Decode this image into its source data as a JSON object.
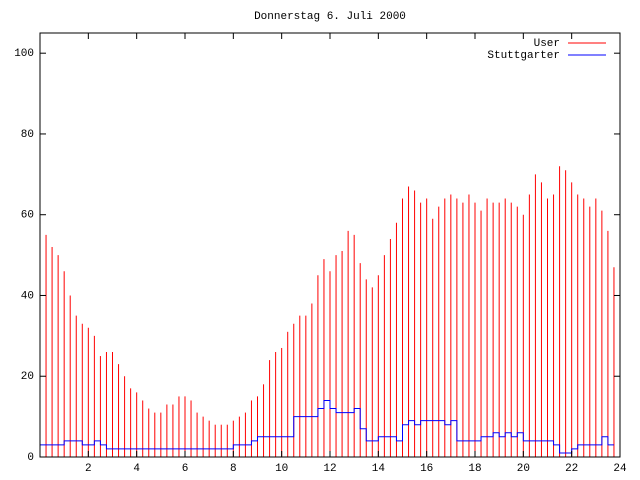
{
  "chart_data": {
    "type": "line",
    "title": "Donnerstag 6. Juli 2000",
    "x": [
      0,
      0.25,
      0.5,
      0.75,
      1,
      1.25,
      1.5,
      1.75,
      2,
      2.25,
      2.5,
      2.75,
      3,
      3.25,
      3.5,
      3.75,
      4,
      4.25,
      4.5,
      4.75,
      5,
      5.25,
      5.5,
      5.75,
      6,
      6.25,
      6.5,
      6.75,
      7,
      7.25,
      7.5,
      7.75,
      8,
      8.25,
      8.5,
      8.75,
      9,
      9.25,
      9.5,
      9.75,
      10,
      10.25,
      10.5,
      10.75,
      11,
      11.25,
      11.5,
      11.75,
      12,
      12.25,
      12.5,
      12.75,
      13,
      13.25,
      13.5,
      13.75,
      14,
      14.25,
      14.5,
      14.75,
      15,
      15.25,
      15.5,
      15.75,
      16,
      16.25,
      16.5,
      16.75,
      17,
      17.25,
      17.5,
      17.75,
      18,
      18.25,
      18.5,
      18.75,
      19,
      19.25,
      19.5,
      19.75,
      20,
      20.25,
      20.5,
      20.75,
      21,
      21.25,
      21.5,
      21.75,
      22,
      22.25,
      22.5,
      22.75,
      23,
      23.25,
      23.5,
      23.75
    ],
    "series": [
      {
        "name": "User",
        "color": "#ff0000",
        "style": "impulses",
        "values": [
          56,
          55,
          52,
          50,
          46,
          40,
          35,
          33,
          32,
          30,
          25,
          26,
          26,
          23,
          20,
          17,
          16,
          14,
          12,
          11,
          11,
          13,
          13,
          15,
          15,
          14,
          11,
          10,
          9,
          8,
          8,
          8,
          9,
          10,
          11,
          14,
          15,
          18,
          24,
          26,
          27,
          31,
          33,
          35,
          35,
          38,
          45,
          49,
          46,
          50,
          51,
          56,
          55,
          48,
          44,
          42,
          45,
          50,
          54,
          58,
          64,
          67,
          66,
          63,
          64,
          59,
          62,
          64,
          65,
          64,
          63,
          65,
          63,
          61,
          64,
          63,
          63,
          64,
          63,
          62,
          60,
          65,
          70,
          68,
          64,
          65,
          72,
          71,
          68,
          65,
          64,
          62,
          64,
          61,
          56,
          47
        ]
      },
      {
        "name": "Stuttgarter",
        "color": "#0000ff",
        "style": "steps",
        "values": [
          3,
          3,
          3,
          3,
          4,
          4,
          4,
          3,
          3,
          4,
          3,
          2,
          2,
          2,
          2,
          2,
          2,
          2,
          2,
          2,
          2,
          2,
          2,
          2,
          2,
          2,
          2,
          2,
          2,
          2,
          2,
          2,
          3,
          3,
          3,
          4,
          5,
          5,
          5,
          5,
          5,
          5,
          10,
          10,
          10,
          10,
          12,
          14,
          12,
          11,
          11,
          11,
          12,
          7,
          4,
          4,
          5,
          5,
          5,
          4,
          8,
          9,
          8,
          9,
          9,
          9,
          9,
          8,
          9,
          4,
          4,
          4,
          4,
          5,
          5,
          6,
          5,
          6,
          5,
          6,
          4,
          4,
          4,
          4,
          4,
          3,
          1,
          1,
          2,
          3,
          3,
          3,
          3,
          5,
          3,
          3
        ]
      }
    ],
    "xlim": [
      0,
      24
    ],
    "xticks": [
      2,
      4,
      6,
      8,
      10,
      12,
      14,
      16,
      18,
      20,
      22,
      24
    ],
    "ylim": [
      0,
      105
    ],
    "yticks": [
      0,
      20,
      40,
      60,
      80,
      100
    ],
    "legend": "top-right"
  }
}
